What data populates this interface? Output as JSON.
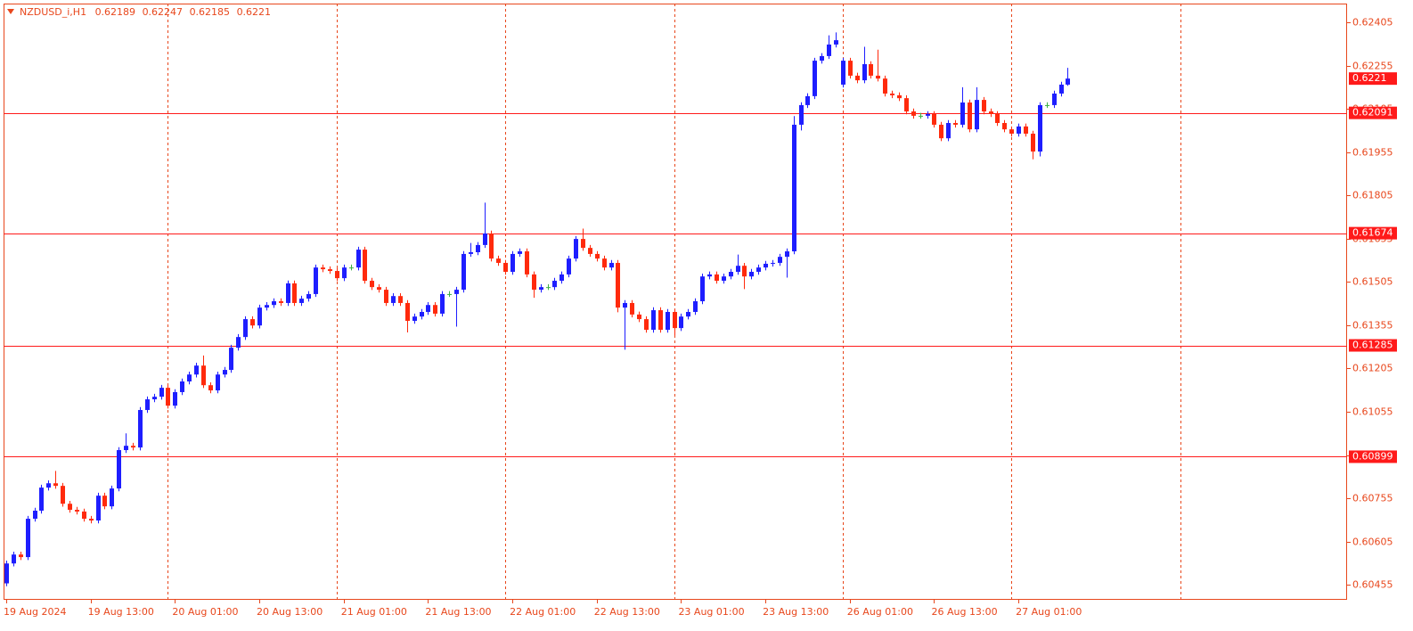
{
  "chart_data": {
    "type": "candlestick",
    "title": "NZDUSD_i,H1",
    "categories": [
      "19 Aug 2024",
      null,
      null,
      null,
      null,
      null,
      null,
      null,
      null,
      null,
      null,
      null,
      "19 Aug 13:00",
      null,
      null,
      null,
      null,
      null,
      null,
      null,
      null,
      null,
      null,
      null,
      "20 Aug 01:00",
      null,
      null,
      null,
      null,
      null,
      null,
      null,
      null,
      null,
      null,
      null,
      "20 Aug 13:00",
      null,
      null,
      null,
      null,
      null,
      null,
      null,
      null,
      null,
      null,
      null,
      "21 Aug 01:00",
      null,
      null,
      null,
      null,
      null,
      null,
      null,
      null,
      null,
      null,
      null,
      "21 Aug 13:00",
      null,
      null,
      null,
      null,
      null,
      null,
      null,
      null,
      null,
      null,
      null,
      "22 Aug 01:00",
      null,
      null,
      null,
      null,
      null,
      null,
      null,
      null,
      null,
      null,
      null,
      "22 Aug 13:00",
      null,
      null,
      null,
      null,
      null,
      null,
      null,
      null,
      null,
      null,
      null,
      "23 Aug 01:00",
      null,
      null,
      null,
      null,
      null,
      null,
      null,
      null,
      null,
      null,
      null,
      "23 Aug 13:00",
      null,
      null,
      null,
      null,
      null,
      null,
      null,
      null,
      null,
      null,
      null,
      "26 Aug 01:00",
      null,
      null,
      null,
      null,
      null,
      null,
      null,
      null,
      null,
      null,
      null,
      "26 Aug 13:00",
      null,
      null,
      null,
      null,
      null,
      null,
      null,
      null,
      null,
      null,
      null,
      "27 Aug 01:00",
      null,
      null,
      null,
      null,
      null,
      null,
      null
    ],
    "open": [
      0.6046,
      0.60529,
      0.6056,
      0.60551,
      0.60684,
      0.60712,
      0.60792,
      0.60807,
      0.60798,
      0.60736,
      0.60715,
      0.60709,
      0.60684,
      0.60678,
      0.60764,
      0.60727,
      0.60789,
      0.60922,
      0.60937,
      0.60931,
      0.61061,
      0.61098,
      0.61107,
      0.61138,
      0.61076,
      0.61123,
      0.6116,
      0.61184,
      0.61215,
      0.61147,
      0.61129,
      0.61184,
      0.612,
      0.61277,
      0.61314,
      0.61376,
      0.61354,
      0.61416,
      0.61425,
      0.61438,
      0.61432,
      0.615,
      0.61432,
      0.61447,
      0.61463,
      0.61555,
      0.61549,
      0.61543,
      0.61518,
      0.61555,
      0.61555,
      0.61617,
      0.61509,
      0.61487,
      0.61478,
      0.61432,
      0.61456,
      0.61432,
      0.6137,
      0.61385,
      0.61401,
      0.61425,
      0.61395,
      0.61463,
      0.61463,
      0.61478,
      0.61602,
      0.61608,
      0.61633,
      0.61673,
      0.61586,
      0.61571,
      0.6154,
      0.61602,
      0.61611,
      0.61531,
      0.61478,
      0.61487,
      0.61487,
      0.61509,
      0.61531,
      0.61586,
      0.61654,
      0.61623,
      0.61602,
      0.61586,
      0.61555,
      0.61571,
      0.61416,
      0.61432,
      0.61392,
      0.61376,
      0.61339,
      0.61407,
      0.61339,
      0.61401,
      0.61345,
      0.61385,
      0.61401,
      0.61438,
      0.61524,
      0.61531,
      0.61509,
      0.61524,
      0.6154,
      0.61561,
      0.61524,
      0.6154,
      0.61555,
      0.61568,
      0.61571,
      0.61592,
      0.61611,
      0.6205,
      0.62118,
      0.62149,
      0.62272,
      0.62288,
      0.62328,
      0.62189,
      0.62272,
      0.6222,
      0.62204,
      0.6226,
      0.6222,
      0.6221,
      0.62158,
      0.62152,
      0.62142,
      0.62096,
      0.62081,
      0.62081,
      0.62087,
      0.6205,
      0.62003,
      0.62056,
      0.6205,
      0.62127,
      0.62034,
      0.62136,
      0.62096,
      0.62087,
      0.62056,
      0.62034,
      0.62019,
      0.62044,
      0.62019,
      0.61957,
      0.62118,
      0.62118,
      0.62158,
      0.62189
    ],
    "high": [
      0.60539,
      0.6057,
      0.6057,
      0.60694,
      0.60722,
      0.60802,
      0.60817,
      0.6085,
      0.60808,
      0.60746,
      0.60725,
      0.60719,
      0.60694,
      0.60774,
      0.60774,
      0.60799,
      0.60932,
      0.6098,
      0.60947,
      0.61071,
      0.61108,
      0.61117,
      0.61148,
      0.61148,
      0.61133,
      0.6117,
      0.61194,
      0.61225,
      0.6125,
      0.61157,
      0.61194,
      0.6121,
      0.61287,
      0.61324,
      0.61386,
      0.61386,
      0.61426,
      0.61435,
      0.61448,
      0.61448,
      0.6151,
      0.6151,
      0.61457,
      0.61473,
      0.61565,
      0.61565,
      0.61559,
      0.61553,
      0.61565,
      0.61565,
      0.61627,
      0.61627,
      0.61519,
      0.61497,
      0.61488,
      0.61466,
      0.61466,
      0.61442,
      0.61395,
      0.61411,
      0.61435,
      0.61435,
      0.61473,
      0.61473,
      0.61488,
      0.61612,
      0.6164,
      0.61643,
      0.6178,
      0.61683,
      0.61596,
      0.61581,
      0.61612,
      0.61621,
      0.61621,
      0.61541,
      0.61497,
      0.61497,
      0.61519,
      0.61541,
      0.61596,
      0.61664,
      0.6169,
      0.61633,
      0.61612,
      0.61596,
      0.61581,
      0.61581,
      0.61442,
      0.61442,
      0.61402,
      0.61386,
      0.61417,
      0.61417,
      0.61411,
      0.61411,
      0.61395,
      0.61411,
      0.61448,
      0.61534,
      0.61541,
      0.61541,
      0.61534,
      0.6155,
      0.616,
      0.61571,
      0.6155,
      0.61565,
      0.61578,
      0.61581,
      0.61602,
      0.61621,
      0.6208,
      0.62128,
      0.62159,
      0.62282,
      0.62298,
      0.6236,
      0.6237,
      0.62282,
      0.62282,
      0.6223,
      0.6232,
      0.6227,
      0.6231,
      0.6222,
      0.62168,
      0.62162,
      0.62152,
      0.62106,
      0.62091,
      0.62097,
      0.62097,
      0.6206,
      0.62066,
      0.62066,
      0.6218,
      0.62137,
      0.6218,
      0.62146,
      0.62106,
      0.62097,
      0.62066,
      0.62044,
      0.62054,
      0.62054,
      0.62029,
      0.62128,
      0.62128,
      0.62168,
      0.62199,
      0.62247
    ],
    "low": [
      0.6045,
      0.60519,
      0.60541,
      0.60541,
      0.60674,
      0.60702,
      0.60782,
      0.60788,
      0.60726,
      0.60705,
      0.60699,
      0.60674,
      0.60668,
      0.60668,
      0.60717,
      0.60717,
      0.60779,
      0.60912,
      0.60921,
      0.60921,
      0.61051,
      0.61088,
      0.61097,
      0.61066,
      0.61066,
      0.61113,
      0.6115,
      0.61174,
      0.61137,
      0.61119,
      0.61119,
      0.61174,
      0.6119,
      0.61267,
      0.61304,
      0.61344,
      0.61344,
      0.61406,
      0.61415,
      0.61422,
      0.61422,
      0.61422,
      0.61422,
      0.61437,
      0.61453,
      0.61539,
      0.61533,
      0.61508,
      0.61508,
      0.61545,
      0.61545,
      0.61499,
      0.61477,
      0.61468,
      0.61422,
      0.61422,
      0.61422,
      0.6133,
      0.6136,
      0.61375,
      0.61391,
      0.61385,
      0.61385,
      0.61453,
      0.6135,
      0.61468,
      0.61592,
      0.61598,
      0.61623,
      0.61576,
      0.61561,
      0.6153,
      0.6153,
      0.61592,
      0.61521,
      0.6145,
      0.61468,
      0.61477,
      0.61477,
      0.61499,
      0.61521,
      0.61576,
      0.61613,
      0.61592,
      0.61576,
      0.61545,
      0.61545,
      0.614,
      0.6127,
      0.61382,
      0.61366,
      0.61329,
      0.61329,
      0.61329,
      0.61329,
      0.6132,
      0.61335,
      0.61375,
      0.61391,
      0.61428,
      0.61514,
      0.61499,
      0.61499,
      0.61514,
      0.6153,
      0.6148,
      0.61514,
      0.6153,
      0.61545,
      0.61558,
      0.61561,
      0.6152,
      0.61601,
      0.6203,
      0.62108,
      0.62139,
      0.62262,
      0.62278,
      0.62318,
      0.62179,
      0.6221,
      0.62194,
      0.62194,
      0.6221,
      0.622,
      0.62148,
      0.62142,
      0.62132,
      0.62086,
      0.62071,
      0.62071,
      0.62071,
      0.6204,
      0.61993,
      0.61993,
      0.6204,
      0.6204,
      0.62024,
      0.62024,
      0.62086,
      0.62077,
      0.62046,
      0.62024,
      0.62009,
      0.62009,
      0.62009,
      0.6193,
      0.6194,
      0.62108,
      0.62108,
      0.62148,
      0.62185
    ],
    "close": [
      0.60529,
      0.6056,
      0.60551,
      0.60684,
      0.60712,
      0.60792,
      0.60807,
      0.60798,
      0.60736,
      0.60715,
      0.60709,
      0.60684,
      0.60678,
      0.60764,
      0.60727,
      0.60789,
      0.60922,
      0.60937,
      0.60931,
      0.61061,
      0.61098,
      0.61107,
      0.61138,
      0.61076,
      0.61123,
      0.6116,
      0.61184,
      0.61215,
      0.61147,
      0.61129,
      0.61184,
      0.612,
      0.61277,
      0.61314,
      0.61376,
      0.61354,
      0.61416,
      0.61425,
      0.61438,
      0.61432,
      0.615,
      0.61432,
      0.61447,
      0.61463,
      0.61555,
      0.61549,
      0.61543,
      0.61518,
      0.61555,
      0.61555,
      0.61617,
      0.61509,
      0.61487,
      0.61478,
      0.61432,
      0.61456,
      0.61432,
      0.6137,
      0.61385,
      0.61401,
      0.61425,
      0.61395,
      0.61463,
      0.61463,
      0.61478,
      0.61602,
      0.61608,
      0.61633,
      0.61673,
      0.61586,
      0.61571,
      0.6154,
      0.61602,
      0.61611,
      0.61531,
      0.61478,
      0.61487,
      0.61487,
      0.61509,
      0.61531,
      0.61586,
      0.61654,
      0.61623,
      0.61602,
      0.61586,
      0.61555,
      0.61571,
      0.61416,
      0.61432,
      0.61392,
      0.61376,
      0.61339,
      0.61407,
      0.61339,
      0.61401,
      0.61345,
      0.61385,
      0.61401,
      0.61438,
      0.61524,
      0.61531,
      0.61509,
      0.61524,
      0.6154,
      0.61561,
      0.61524,
      0.6154,
      0.61555,
      0.61568,
      0.61571,
      0.61592,
      0.61611,
      0.6205,
      0.62118,
      0.62149,
      0.62272,
      0.62288,
      0.62328,
      0.62343,
      0.62272,
      0.6222,
      0.62204,
      0.6226,
      0.6222,
      0.6221,
      0.62158,
      0.62152,
      0.62142,
      0.62096,
      0.62081,
      0.62081,
      0.62087,
      0.6205,
      0.62003,
      0.62056,
      0.6205,
      0.62127,
      0.62034,
      0.62136,
      0.62096,
      0.62087,
      0.62056,
      0.62034,
      0.62019,
      0.62044,
      0.62019,
      0.61957,
      0.62118,
      0.62118,
      0.62158,
      0.62189,
      0.6221
    ],
    "up_color": "#1e1eff",
    "down_color": "#ff2a0c",
    "doji_color": "#3cb043",
    "ylim": [
      0.60403,
      0.6247
    ],
    "yticks": [
      0.62405,
      0.62255,
      0.62105,
      0.61955,
      0.61805,
      0.61655,
      0.61505,
      0.61355,
      0.61205,
      0.61055,
      0.60905,
      0.60755,
      0.60605,
      0.60455
    ],
    "hlines": [
      0.62091,
      0.61674,
      0.61285,
      0.60899
    ],
    "hline_color": "#ff1a1a",
    "axis_color": "#e8471c",
    "grid": true
  }
}
